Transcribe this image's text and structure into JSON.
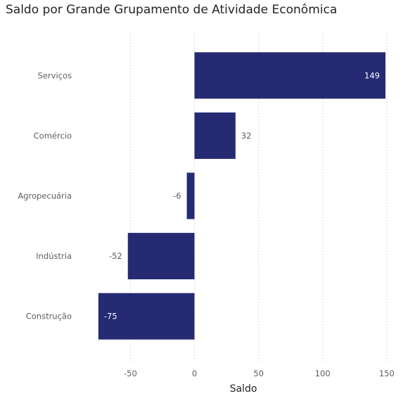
{
  "title": "Saldo por Grande Grupamento de Atividade Econômica",
  "colors": {
    "bar": "#252a73",
    "label_inside": "#ffffff",
    "label_outside": "#605e5c",
    "text": "#605e5c",
    "grid": "#c8c6c4"
  },
  "chart_data": {
    "type": "bar",
    "orientation": "horizontal",
    "title": "Saldo por Grande Grupamento de Atividade Econômica",
    "categories": [
      "Serviços",
      "Comércio",
      "Agropecuária",
      "Indústria",
      "Construção"
    ],
    "values": [
      149,
      32,
      -6,
      -52,
      -75
    ],
    "data_labels": [
      "149",
      "32",
      "-6",
      "-52",
      "-75"
    ],
    "xlabel": "Saldo",
    "ylabel": "",
    "xlim": [
      -80,
      150
    ],
    "xticks": [
      -50,
      0,
      50,
      100,
      150
    ],
    "xtick_labels": [
      "-50",
      "0",
      "50",
      "100",
      "150"
    ],
    "grid": true,
    "legend": "none"
  }
}
